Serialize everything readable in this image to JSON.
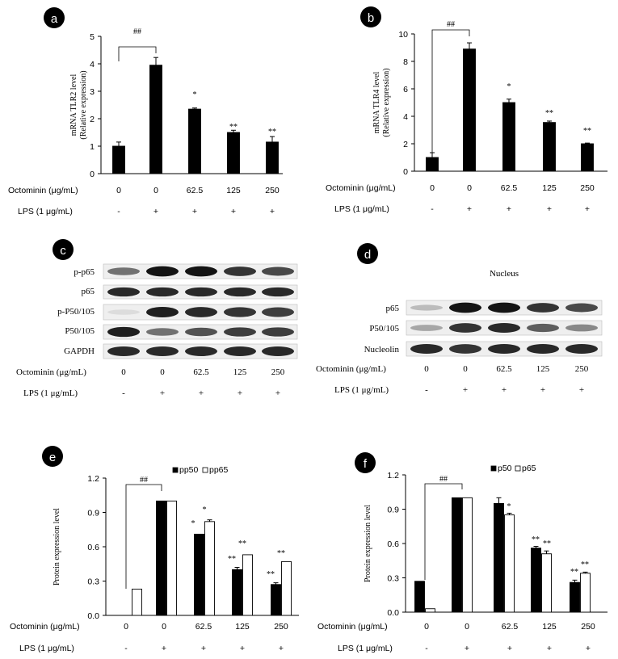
{
  "rows": {
    "octominin_label": "Octominin (μg/mL)",
    "lps_label": "LPS (1 μg/mL)",
    "octominin_values": [
      "0",
      "0",
      "62.5",
      "125",
      "250"
    ],
    "lps_values": [
      "-",
      "+",
      "+",
      "+",
      "+"
    ]
  },
  "panels": {
    "a": {
      "label": "a",
      "ylabel1": "mRNA TLR2 level",
      "ylabel2": "(Relative expression)"
    },
    "b": {
      "label": "b",
      "ylabel1": "mRNA TLR4 level",
      "ylabel2": "(Relative expression)"
    },
    "c": {
      "label": "c",
      "bands": [
        "p-p65",
        "p65",
        "p-P50/105",
        "P50/105",
        "GAPDH"
      ]
    },
    "d": {
      "label": "d",
      "title": "Nucleus",
      "bands": [
        "p65",
        "P50/105",
        "Nucleolin"
      ]
    },
    "e": {
      "label": "e",
      "ylabel": "Protein expression level"
    },
    "f": {
      "label": "f",
      "ylabel": "Protein expression level"
    }
  },
  "chart_data": [
    {
      "id": "a",
      "type": "bar",
      "categories": [
        "0",
        "0",
        "62.5",
        "125",
        "250"
      ],
      "series": [
        {
          "values": [
            1.0,
            3.95,
            2.35,
            1.5,
            1.15
          ],
          "errors": [
            0.15,
            0.28,
            0.04,
            0.08,
            0.2
          ],
          "color": "#000000"
        }
      ],
      "ylim": [
        0,
        5
      ],
      "yticks": [
        "0",
        "1",
        "2",
        "3",
        "4",
        "5"
      ],
      "ylabel": "mRNA TLR2 level (Relative expression)",
      "annotations": [
        "##",
        "*",
        "**",
        "**"
      ]
    },
    {
      "id": "b",
      "type": "bar",
      "categories": [
        "0",
        "0",
        "62.5",
        "125",
        "250"
      ],
      "series": [
        {
          "values": [
            1.0,
            8.9,
            5.0,
            3.55,
            2.0
          ],
          "errors": [
            0.35,
            0.45,
            0.25,
            0.1,
            0.05
          ],
          "color": "#000000"
        }
      ],
      "ylim": [
        0,
        10
      ],
      "yticks": [
        "0",
        "2",
        "4",
        "6",
        "8",
        "10"
      ],
      "ylabel": "mRNA TLR4 level (Relative expression)",
      "annotations": [
        "##",
        "*",
        "**",
        "**"
      ]
    },
    {
      "id": "e",
      "type": "bar",
      "categories": [
        "0",
        "0",
        "62.5",
        "125",
        "250"
      ],
      "series": [
        {
          "name": "pp50",
          "values": [
            0.0,
            1.0,
            0.71,
            0.4,
            0.27
          ],
          "errors": [
            0,
            0,
            0,
            0.02,
            0.015
          ],
          "color": "#000000"
        },
        {
          "name": "pp65",
          "values": [
            0.23,
            1.0,
            0.82,
            0.53,
            0.47
          ],
          "errors": [
            0,
            0,
            0.015,
            0,
            0
          ],
          "color": "#ffffff"
        }
      ],
      "ylim": [
        0,
        1.2
      ],
      "yticks": [
        "0.0",
        "0.3",
        "0.6",
        "0.9",
        "1.2"
      ],
      "ylabel": "Protein expression level",
      "legend": "top-right",
      "annotations": [
        "##",
        "*",
        "*",
        "**",
        "**",
        "**",
        "**"
      ]
    },
    {
      "id": "f",
      "type": "bar",
      "categories": [
        "0",
        "0",
        "62.5",
        "125",
        "250"
      ],
      "series": [
        {
          "name": "p50",
          "values": [
            0.27,
            1.0,
            0.95,
            0.56,
            0.26
          ],
          "errors": [
            0,
            0,
            0.05,
            0.015,
            0.02
          ],
          "color": "#000000"
        },
        {
          "name": "p65",
          "values": [
            0.03,
            1.0,
            0.85,
            0.51,
            0.34
          ],
          "errors": [
            0,
            0,
            0.015,
            0.025,
            0.01
          ],
          "color": "#ffffff"
        }
      ],
      "ylim": [
        0,
        1.2
      ],
      "yticks": [
        "0.0",
        "0.3",
        "0.6",
        "0.9",
        "1.2"
      ],
      "ylabel": "Protein expression level",
      "legend": "top-right",
      "annotations": [
        "##",
        "*",
        "**",
        "**",
        "**",
        "**"
      ]
    }
  ]
}
